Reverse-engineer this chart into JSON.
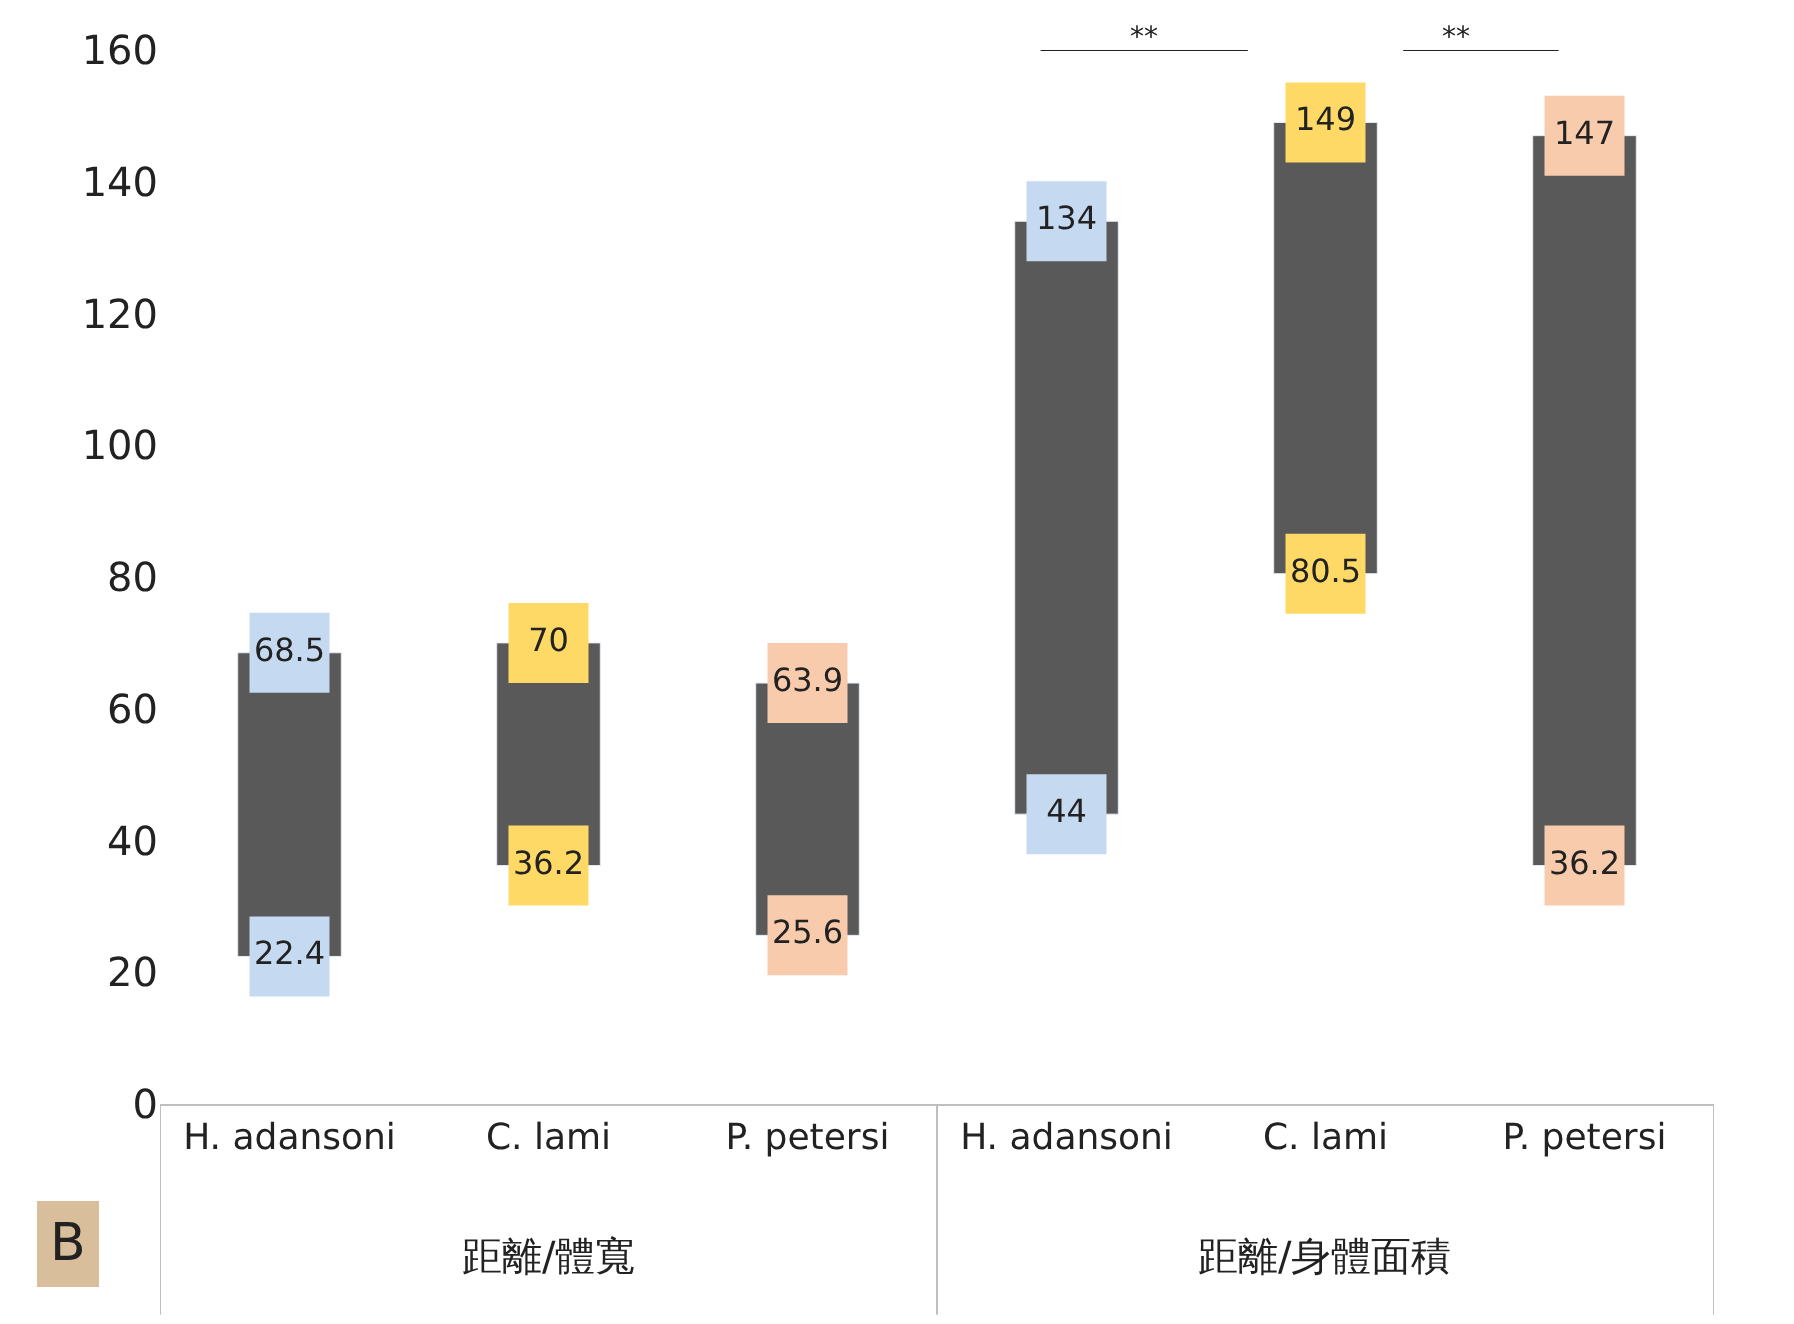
{
  "chart_data": {
    "type": "bar",
    "categories": [
      "H. adansoni",
      "C. lami",
      "P. petersi",
      "H. adansoni",
      "C. lami",
      "P. petersi"
    ],
    "series": [
      {
        "color": "#595959",
        "base": [
          22.4,
          36.2,
          25.6,
          44,
          80.5,
          36.2
        ],
        "values": [
          46.1,
          33.8,
          38.3,
          90,
          68.5,
          110.8
        ]
      },
      {
        "type": "scatter",
        "marker": "square",
        "colors": [
          "#c5d9f1",
          "#ffd966",
          "#f8cbad",
          "#c5d9f1",
          "#ffd966",
          "#f8cbad"
        ],
        "values": [
          22.4,
          36.2,
          25.6,
          44,
          80.5,
          36.2
        ],
        "value_labels": [
          "22.4",
          "36.2",
          "25.6",
          "44",
          "80.5",
          "36.2"
        ]
      },
      {
        "type": "scatter",
        "marker": "square",
        "colors": [
          "#c5d9f1",
          "#ffd966",
          "#f8cbad",
          "#c5d9f1",
          "#ffd966",
          "#f8cbad"
        ],
        "values": [
          68.5,
          70,
          63.9,
          134,
          149,
          147
        ],
        "value_labels": [
          "68.5",
          "70",
          "63.9",
          "134",
          "149",
          "147"
        ]
      }
    ],
    "ylim": [
      0,
      160
    ],
    "yticks": [
      0,
      20,
      40,
      60,
      80,
      100,
      120,
      140,
      160
    ],
    "annotations": [
      "距離/體寬",
      "距離/身體面積",
      "**",
      "**",
      "B"
    ]
  }
}
